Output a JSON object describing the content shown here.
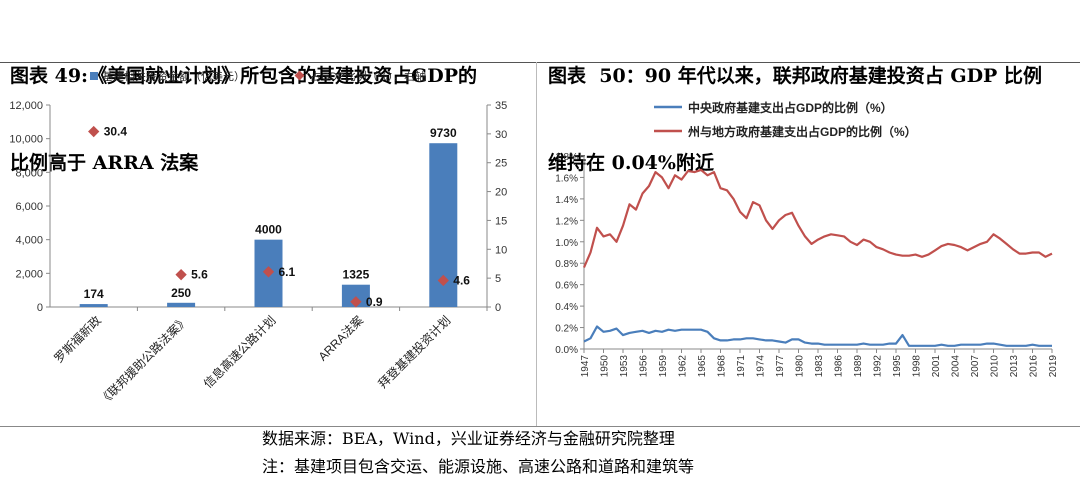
{
  "left_title": {
    "line1": "图表 49:《美国就业计划》所包含的基建投资占GDP的",
    "line2": "比例高于 ARRA 法案"
  },
  "right_title": {
    "line1": "图表  50：90 年代以来，联邦政府基建投资占 GDP 比例",
    "line2": "维持在 0.04%附近"
  },
  "footer": {
    "source": "数据来源：BEA，Wind，兴业证券经济与金融研究院整理",
    "note": "注：基建项目包含交运、能源设施、高速公路和道路和建筑等"
  },
  "chart_data": [
    {
      "type": "bar",
      "categories": [
        "罗斯福新政",
        "《联邦援助公路法案》",
        "信息高速公路计划",
        "ARRA法案",
        "拜登基建投资计划"
      ],
      "series": [
        {
          "name": "基建相关投资金额（亿美元）",
          "type": "bar",
          "axis": "left",
          "values": [
            174,
            250,
            4000,
            1325,
            9730
          ],
          "labels": [
            "174",
            "250",
            "4000",
            "1325",
            "9730"
          ],
          "color": "#4a7ebb"
        },
        {
          "name": "占GDP比例（%），右轴",
          "type": "scatter",
          "axis": "right",
          "values": [
            30.4,
            5.6,
            6.1,
            0.9,
            4.6
          ],
          "labels": [
            "30.4",
            "5.6",
            "6.1",
            "0.9",
            "4.6"
          ],
          "color": "#c0504d"
        }
      ],
      "y_left": {
        "min": 0,
        "max": 12000,
        "ticks": [
          "0",
          "2,000",
          "4,000",
          "6,000",
          "8,000",
          "10,000",
          "12,000"
        ]
      },
      "y_right": {
        "min": 0,
        "max": 35,
        "ticks": [
          "0",
          "5",
          "10",
          "15",
          "20",
          "25",
          "30",
          "35"
        ]
      },
      "legend_position": "top",
      "grid": false
    },
    {
      "type": "line",
      "x": [
        "1947",
        "1948",
        "1949",
        "1950",
        "1951",
        "1952",
        "1953",
        "1954",
        "1955",
        "1956",
        "1957",
        "1958",
        "1959",
        "1960",
        "1961",
        "1962",
        "1963",
        "1964",
        "1965",
        "1966",
        "1967",
        "1968",
        "1969",
        "1970",
        "1971",
        "1972",
        "1973",
        "1974",
        "1975",
        "1976",
        "1977",
        "1978",
        "1979",
        "1980",
        "1981",
        "1982",
        "1983",
        "1984",
        "1985",
        "1986",
        "1987",
        "1988",
        "1989",
        "1990",
        "1991",
        "1992",
        "1993",
        "1994",
        "1995",
        "1996",
        "1997",
        "1998",
        "1999",
        "2000",
        "2001",
        "2002",
        "2003",
        "2004",
        "2005",
        "2006",
        "2007",
        "2008",
        "2009",
        "2010",
        "2011",
        "2012",
        "2013",
        "2014",
        "2015",
        "2016",
        "2017",
        "2018",
        "2019"
      ],
      "x_tick_labels": [
        "1947",
        "1950",
        "1953",
        "1956",
        "1959",
        "1962",
        "1965",
        "1968",
        "1971",
        "1974",
        "1977",
        "1980",
        "1983",
        "1986",
        "1989",
        "1992",
        "1995",
        "1998",
        "2001",
        "2004",
        "2007",
        "2010",
        "2013",
        "2016",
        "2019"
      ],
      "series": [
        {
          "name": "中央政府基建支出占GDP的比例（%）",
          "color": "#4a7ebb",
          "values": [
            0.07,
            0.1,
            0.21,
            0.16,
            0.17,
            0.19,
            0.13,
            0.15,
            0.16,
            0.17,
            0.15,
            0.17,
            0.16,
            0.18,
            0.17,
            0.18,
            0.18,
            0.18,
            0.18,
            0.16,
            0.1,
            0.08,
            0.08,
            0.09,
            0.09,
            0.1,
            0.1,
            0.09,
            0.08,
            0.08,
            0.07,
            0.06,
            0.09,
            0.09,
            0.06,
            0.05,
            0.05,
            0.04,
            0.04,
            0.04,
            0.04,
            0.04,
            0.04,
            0.05,
            0.04,
            0.04,
            0.04,
            0.05,
            0.05,
            0.13,
            0.03,
            0.03,
            0.03,
            0.03,
            0.03,
            0.04,
            0.03,
            0.03,
            0.04,
            0.04,
            0.04,
            0.04,
            0.05,
            0.05,
            0.04,
            0.03,
            0.03,
            0.03,
            0.03,
            0.04,
            0.03,
            0.03,
            0.03
          ]
        },
        {
          "name": "州与地方政府基建支出占GDP的比例（%）",
          "color": "#c0504d",
          "values": [
            0.76,
            0.9,
            1.13,
            1.05,
            1.07,
            1.0,
            1.15,
            1.35,
            1.3,
            1.45,
            1.52,
            1.65,
            1.6,
            1.5,
            1.62,
            1.58,
            1.66,
            1.65,
            1.67,
            1.62,
            1.65,
            1.5,
            1.48,
            1.4,
            1.28,
            1.22,
            1.37,
            1.34,
            1.2,
            1.12,
            1.2,
            1.25,
            1.27,
            1.15,
            1.05,
            0.98,
            1.02,
            1.05,
            1.07,
            1.06,
            1.05,
            1.0,
            0.97,
            1.02,
            1.0,
            0.95,
            0.93,
            0.9,
            0.88,
            0.87,
            0.87,
            0.88,
            0.86,
            0.88,
            0.92,
            0.96,
            0.98,
            0.97,
            0.95,
            0.92,
            0.95,
            0.98,
            1.0,
            1.07,
            1.03,
            0.98,
            0.93,
            0.89,
            0.89,
            0.9,
            0.9,
            0.86,
            0.89
          ]
        }
      ],
      "y": {
        "min": 0,
        "max": 1.8,
        "ticks": [
          "0.0%",
          "0.2%",
          "0.4%",
          "0.6%",
          "0.8%",
          "1.0%",
          "1.2%",
          "1.4%",
          "1.6%",
          "1.8%"
        ]
      },
      "legend_position": "top-left",
      "grid": false
    }
  ]
}
